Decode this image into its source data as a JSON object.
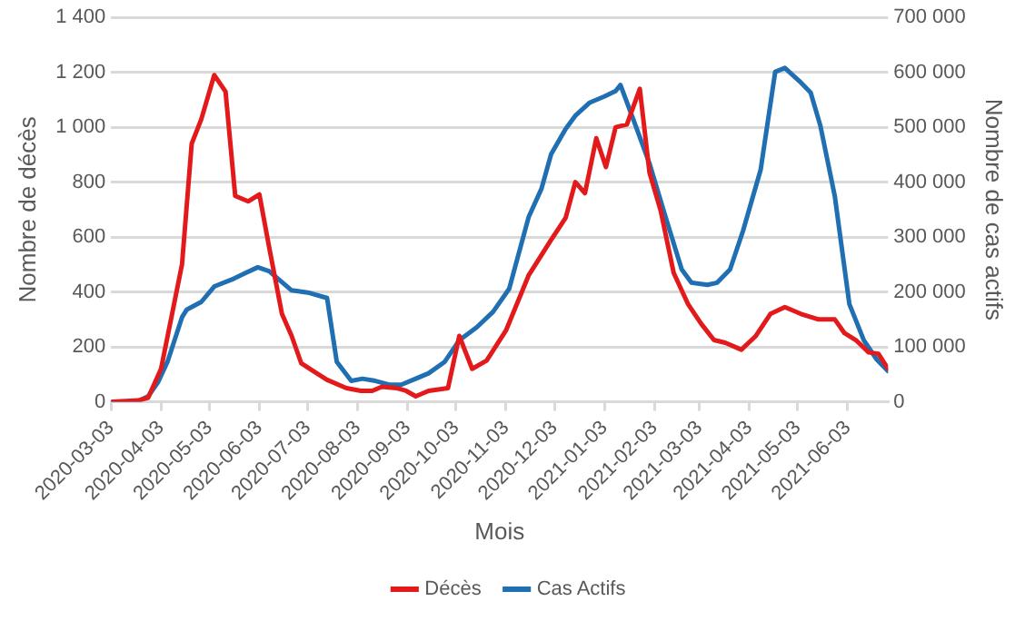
{
  "chart_data": {
    "type": "line",
    "xlabel": "Mois",
    "ylabel": "Nombre de décès",
    "y2label": "Nombre de cas actifs",
    "xlim": [
      "2020-03-03",
      "2021-06-28"
    ],
    "xticks": [
      "2020-03-03",
      "2020-04-03",
      "2020-05-03",
      "2020-06-03",
      "2020-07-03",
      "2020-08-03",
      "2020-09-03",
      "2020-10-03",
      "2020-11-03",
      "2020-12-03",
      "2021-01-03",
      "2021-02-03",
      "2021-03-03",
      "2021-04-03",
      "2021-05-03",
      "2021-06-03"
    ],
    "ylim": [
      0,
      1400
    ],
    "yticks": [
      0,
      {
        "value": 200,
        "label": "200"
      },
      {
        "value": 400,
        "label": "400"
      },
      {
        "value": 600,
        "label": "600"
      },
      {
        "value": 800,
        "label": "800"
      },
      {
        "value": 1000,
        "label": "1 000"
      },
      {
        "value": 1200,
        "label": "1 200"
      },
      {
        "value": 1400,
        "label": "1 400"
      }
    ],
    "y2lim": [
      0,
      700000
    ],
    "y2ticks": [
      0,
      {
        "value": 100000,
        "label": "100 000"
      },
      {
        "value": 200000,
        "label": "200 000"
      },
      {
        "value": 300000,
        "label": "300 000"
      },
      {
        "value": 400000,
        "label": "400 000"
      },
      {
        "value": 500000,
        "label": "500 000"
      },
      {
        "value": 600000,
        "label": "600 000"
      },
      {
        "value": 700000,
        "label": "700 000"
      }
    ],
    "grid": "y",
    "legend": "bottom",
    "marker": "none",
    "line_style": "solid",
    "series": [
      {
        "name": "Décès",
        "color": "#e31a1c",
        "x": [
          "2020-03-04",
          "2020-03-20",
          "2020-03-26",
          "2020-04-03",
          "2020-04-16",
          "2020-04-22",
          "2020-04-28",
          "2020-05-06",
          "2020-05-13",
          "2020-05-19",
          "2020-05-27",
          "2020-06-03",
          "2020-06-09",
          "2020-06-17",
          "2020-06-23",
          "2020-06-29",
          "2020-07-07",
          "2020-07-15",
          "2020-07-27",
          "2020-08-05",
          "2020-08-12",
          "2020-08-18",
          "2020-08-27",
          "2020-09-02",
          "2020-09-08",
          "2020-09-16",
          "2020-09-28",
          "2020-10-05",
          "2020-10-13",
          "2020-10-22",
          "2020-11-03",
          "2020-11-17",
          "2020-12-01",
          "2020-12-10",
          "2020-12-16",
          "2020-12-22",
          "2020-12-29",
          "2021-01-04",
          "2021-01-10",
          "2021-01-17",
          "2021-01-25",
          "2021-01-31",
          "2021-02-07",
          "2021-02-15",
          "2021-02-24",
          "2021-03-04",
          "2021-03-12",
          "2021-03-19",
          "2021-03-29",
          "2021-04-07",
          "2021-04-16",
          "2021-04-25",
          "2021-05-05",
          "2021-05-16",
          "2021-05-26",
          "2021-06-01",
          "2021-06-08",
          "2021-06-16",
          "2021-06-22",
          "2021-06-28"
        ],
        "values": [
          0,
          5,
          15,
          120,
          500,
          940,
          1030,
          1190,
          1130,
          750,
          730,
          755,
          565,
          320,
          240,
          140,
          110,
          80,
          50,
          40,
          40,
          55,
          50,
          40,
          20,
          40,
          50,
          240,
          120,
          150,
          260,
          460,
          590,
          670,
          800,
          760,
          960,
          855,
          1000,
          1010,
          1140,
          835,
          695,
          470,
          355,
          285,
          225,
          215,
          190,
          240,
          320,
          345,
          320,
          300,
          300,
          250,
          225,
          180,
          175,
          120
        ]
      },
      {
        "name": "Cas Actifs",
        "color": "#1f6fb2",
        "axis": "y2",
        "x": [
          "2020-03-04",
          "2020-03-19",
          "2020-03-26",
          "2020-04-01",
          "2020-04-07",
          "2020-04-16",
          "2020-04-19",
          "2020-04-28",
          "2020-05-06",
          "2020-05-18",
          "2020-05-25",
          "2020-06-02",
          "2020-06-09",
          "2020-06-23",
          "2020-07-03",
          "2020-07-15",
          "2020-07-21",
          "2020-07-30",
          "2020-08-06",
          "2020-08-14",
          "2020-08-23",
          "2020-08-30",
          "2020-09-08",
          "2020-09-16",
          "2020-09-26",
          "2020-10-05",
          "2020-10-16",
          "2020-10-26",
          "2020-11-05",
          "2020-11-17",
          "2020-11-25",
          "2020-12-01",
          "2020-12-10",
          "2020-12-16",
          "2020-12-25",
          "2021-01-03",
          "2021-01-10",
          "2021-01-13",
          "2021-01-21",
          "2021-01-31",
          "2021-02-09",
          "2021-02-20",
          "2021-02-26",
          "2021-03-08",
          "2021-03-14",
          "2021-03-22",
          "2021-03-30",
          "2021-04-10",
          "2021-04-19",
          "2021-04-25",
          "2021-05-04",
          "2021-05-11",
          "2021-05-17",
          "2021-05-26",
          "2021-06-04",
          "2021-06-13",
          "2021-06-21",
          "2021-06-28"
        ],
        "values": [
          0,
          0,
          10000,
          35000,
          73000,
          154000,
          168000,
          182000,
          210000,
          224000,
          234000,
          245000,
          238000,
          203000,
          199000,
          189000,
          73000,
          38000,
          42000,
          38000,
          31000,
          31000,
          42000,
          52000,
          73000,
          112000,
          136000,
          164000,
          206000,
          336000,
          388000,
          451000,
          497000,
          521000,
          545000,
          556000,
          566000,
          577000,
          514000,
          434000,
          346000,
          241000,
          217000,
          213000,
          217000,
          241000,
          311000,
          423000,
          601000,
          608000,
          584000,
          563000,
          503000,
          374000,
          178000,
          112000,
          77000,
          56000
        ]
      }
    ]
  }
}
